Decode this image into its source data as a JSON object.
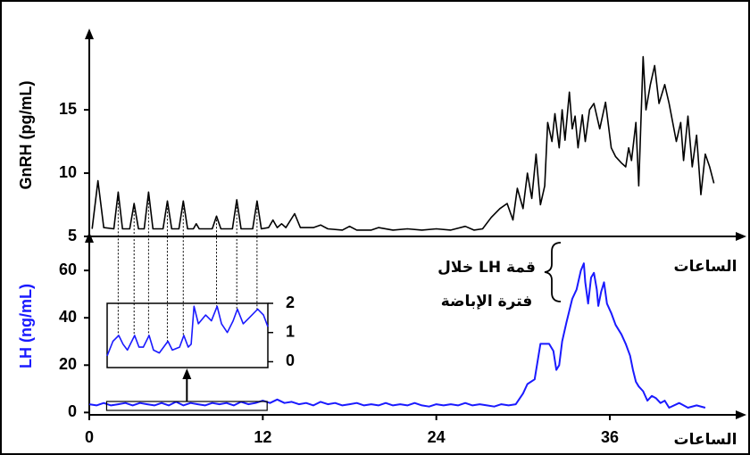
{
  "chart_data": [
    {
      "type": "line",
      "y_label": "GnRH (pg/mL)",
      "x_label": "الساعات",
      "color": "#000000",
      "xlim": [
        0,
        45.2
      ],
      "ylim": [
        5,
        21
      ],
      "yticks": [
        5,
        10,
        15
      ],
      "x": [
        0.2,
        0.6,
        1.0,
        1.7,
        2.0,
        2.3,
        2.8,
        3.1,
        3.4,
        3.8,
        4.1,
        4.4,
        5.1,
        5.4,
        5.7,
        6.2,
        6.5,
        6.8,
        7.2,
        7.4,
        7.6,
        8.5,
        8.8,
        9.1,
        9.9,
        10.2,
        10.5,
        11.3,
        11.6,
        11.9,
        12.4,
        12.7,
        13.0,
        13.3,
        13.6,
        14.2,
        14.6,
        15.5,
        16.0,
        16.5,
        17.5,
        18.0,
        18.5,
        19.5,
        20.0,
        21.0,
        22.0,
        23.0,
        24.0,
        25.0,
        26.0,
        26.6,
        27.2,
        27.8,
        28.4,
        28.9,
        29.3,
        29.6,
        30.0,
        30.3,
        30.6,
        30.9,
        31.2,
        31.5,
        31.7,
        32.0,
        32.2,
        32.5,
        32.7,
        32.9,
        33.2,
        33.4,
        33.6,
        33.8,
        34.1,
        34.3,
        34.6,
        34.9,
        35.3,
        35.7,
        36.1,
        36.4,
        36.8,
        37.1,
        37.3,
        37.5,
        37.8,
        38.0,
        38.3,
        38.5,
        38.8,
        39.1,
        39.4,
        39.8,
        40.1,
        40.6,
        40.9,
        41.1,
        41.4,
        41.7,
        42.0,
        42.3,
        42.6,
        42.9,
        43.2
      ],
      "values": [
        5.6,
        9.4,
        5.7,
        5.6,
        8.5,
        5.6,
        5.6,
        7.6,
        5.6,
        5.6,
        8.5,
        5.6,
        5.6,
        7.8,
        5.6,
        5.6,
        7.8,
        5.6,
        5.6,
        6.0,
        5.6,
        5.6,
        6.6,
        5.6,
        5.6,
        7.9,
        5.6,
        5.6,
        7.8,
        5.6,
        5.7,
        6.3,
        5.7,
        6.0,
        5.7,
        6.8,
        5.7,
        5.7,
        5.9,
        5.6,
        5.5,
        5.8,
        5.5,
        5.5,
        5.7,
        5.5,
        5.6,
        5.5,
        5.6,
        5.5,
        5.8,
        5.5,
        5.6,
        6.5,
        7.2,
        7.6,
        6.3,
        8.8,
        7.2,
        10.0,
        8.0,
        11.5,
        7.5,
        9.0,
        14.0,
        12.5,
        14.7,
        12.0,
        15.0,
        12.6,
        16.4,
        13.5,
        14.5,
        12.0,
        14.6,
        12.5,
        15.0,
        15.5,
        13.5,
        15.6,
        12.0,
        11.3,
        10.8,
        10.5,
        12.0,
        11.0,
        14.0,
        9.0,
        19.2,
        15.0,
        17.0,
        18.5,
        15.5,
        17.0,
        15.5,
        12.5,
        14.0,
        11.0,
        14.5,
        10.5,
        13.0,
        8.3,
        11.5,
        10.5,
        9.2
      ]
    },
    {
      "type": "line",
      "y_label": "LH (ng/mL)",
      "x_label": "الساعات",
      "color": "#1a1aff",
      "annotation": [
        "قمة LH خلال",
        "فترة الإباضة"
      ],
      "xlim": [
        0,
        45.2
      ],
      "ylim": [
        -1,
        74
      ],
      "yticks": [
        0,
        20,
        40,
        60
      ],
      "xticks": [
        0,
        12,
        24,
        36
      ],
      "x": [
        0,
        0.5,
        1,
        1.5,
        2,
        2.5,
        3,
        3.5,
        4,
        4.5,
        5,
        5.5,
        6,
        6.5,
        7,
        7.5,
        8,
        8.5,
        9,
        9.5,
        10,
        10.5,
        11,
        11.5,
        12,
        12.5,
        13,
        13.5,
        14,
        14.5,
        15,
        15.5,
        16,
        16.5,
        17,
        17.5,
        18,
        18.5,
        19,
        19.5,
        20,
        20.5,
        21,
        21.5,
        22,
        22.5,
        23,
        23.5,
        24,
        24.5,
        25,
        25.5,
        26,
        26.5,
        27,
        27.5,
        28,
        28.5,
        29,
        29.5,
        30.0,
        30.3,
        30.8,
        31.2,
        31.8,
        32.1,
        32.3,
        32.5,
        32.7,
        33.0,
        33.4,
        33.7,
        34.0,
        34.2,
        34.3,
        34.5,
        34.7,
        34.9,
        35.1,
        35.2,
        35.4,
        35.6,
        35.8,
        36.1,
        36.4,
        36.8,
        37.1,
        37.4,
        37.6,
        37.8,
        38.0,
        38.3,
        38.6,
        38.9,
        39.2,
        39.5,
        39.8,
        40.1,
        40.8,
        41.4,
        42.0,
        42.6
      ],
      "values": [
        3.5,
        3,
        4,
        3,
        3.5,
        4,
        3,
        4,
        3.5,
        3,
        4,
        3,
        4.5,
        3,
        4,
        3.5,
        3,
        4,
        3.5,
        4,
        3,
        4.5,
        3.5,
        4,
        5,
        4,
        5.5,
        4,
        4.5,
        3.5,
        4,
        3,
        4.5,
        3.5,
        4,
        3,
        3.5,
        4,
        3,
        3.5,
        3,
        4,
        3,
        3.5,
        3,
        4,
        3,
        2.5,
        3.5,
        3,
        3.5,
        3,
        4,
        3,
        3.5,
        3,
        2.5,
        3.5,
        3,
        3.5,
        8,
        12,
        14,
        29,
        29,
        26,
        18,
        20,
        30,
        38,
        48,
        52,
        60,
        63,
        55,
        46,
        57,
        59,
        52,
        45,
        51,
        55,
        46,
        42,
        37,
        33,
        29,
        24,
        18,
        13,
        11,
        9,
        5,
        7,
        6,
        4,
        5,
        2,
        4,
        2,
        3,
        2
      ]
    },
    {
      "type": "line",
      "color": "#1a1aff",
      "xlim": [
        1.2,
        12.3
      ],
      "ylim": [
        -0.2,
        2.0
      ],
      "yticks": [
        0,
        1,
        2
      ],
      "x": [
        1.2,
        1.6,
        2.0,
        2.3,
        2.6,
        3.1,
        3.4,
        3.7,
        4.1,
        4.4,
        4.8,
        5.4,
        5.7,
        6.2,
        6.5,
        6.8,
        7.0,
        7.2,
        7.5,
        8.0,
        8.4,
        8.8,
        9.1,
        9.5,
        9.9,
        10.2,
        10.6,
        11.0,
        11.6,
        12.0,
        12.3
      ],
      "values": [
        0.2,
        0.7,
        0.9,
        0.6,
        0.4,
        0.9,
        0.5,
        0.5,
        0.9,
        0.4,
        0.3,
        0.7,
        0.4,
        0.5,
        0.9,
        0.5,
        0.6,
        1.9,
        1.3,
        1.6,
        1.4,
        1.9,
        1.3,
        1.0,
        1.4,
        1.8,
        1.3,
        1.5,
        1.8,
        1.6,
        1.2
      ]
    }
  ]
}
